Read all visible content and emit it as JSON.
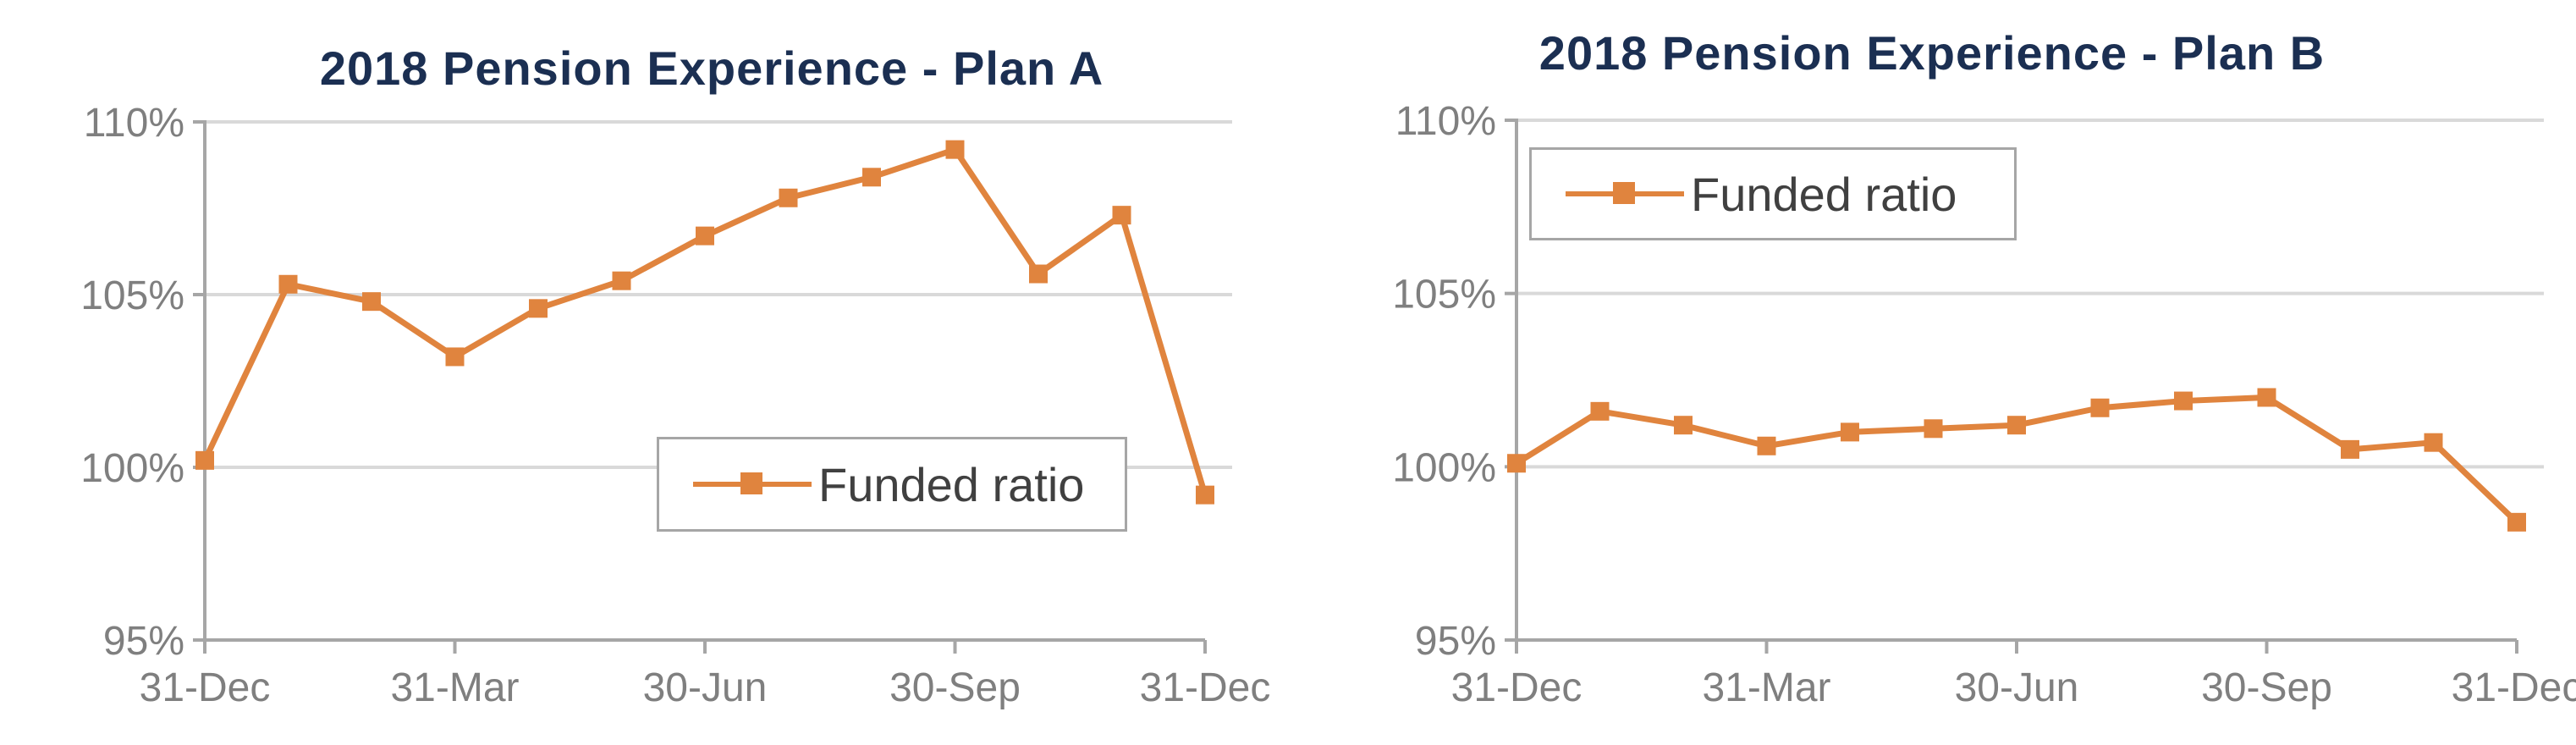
{
  "chart_data": [
    {
      "type": "line",
      "title": "2018 Pension Experience - Plan A",
      "x_ticks": [
        "31-Dec",
        "31-Mar",
        "30-Jun",
        "30-Sep",
        "31-Dec"
      ],
      "y_ticks": [
        "95%",
        "100%",
        "105%",
        "110%"
      ],
      "ylim": [
        95,
        110
      ],
      "grid": true,
      "legend_position": "bottom-right",
      "series": [
        {
          "name": "Funded ratio",
          "color": "#e0843e",
          "values": [
            100.2,
            105.3,
            104.8,
            103.2,
            104.6,
            105.4,
            106.7,
            107.8,
            108.4,
            109.2,
            105.6,
            107.3,
            99.2
          ]
        }
      ]
    },
    {
      "type": "line",
      "title": "2018 Pension Experience - Plan B",
      "x_ticks": [
        "31-Dec",
        "31-Mar",
        "30-Jun",
        "30-Sep",
        "31-Dec"
      ],
      "y_ticks": [
        "95%",
        "100%",
        "105%",
        "110%"
      ],
      "ylim": [
        95,
        110
      ],
      "grid": true,
      "legend_position": "top-left",
      "series": [
        {
          "name": "Funded ratio",
          "color": "#e0843e",
          "values": [
            100.1,
            101.6,
            101.2,
            100.6,
            101.0,
            101.1,
            101.2,
            101.7,
            101.9,
            102.0,
            100.5,
            100.7,
            98.4
          ]
        }
      ]
    }
  ]
}
